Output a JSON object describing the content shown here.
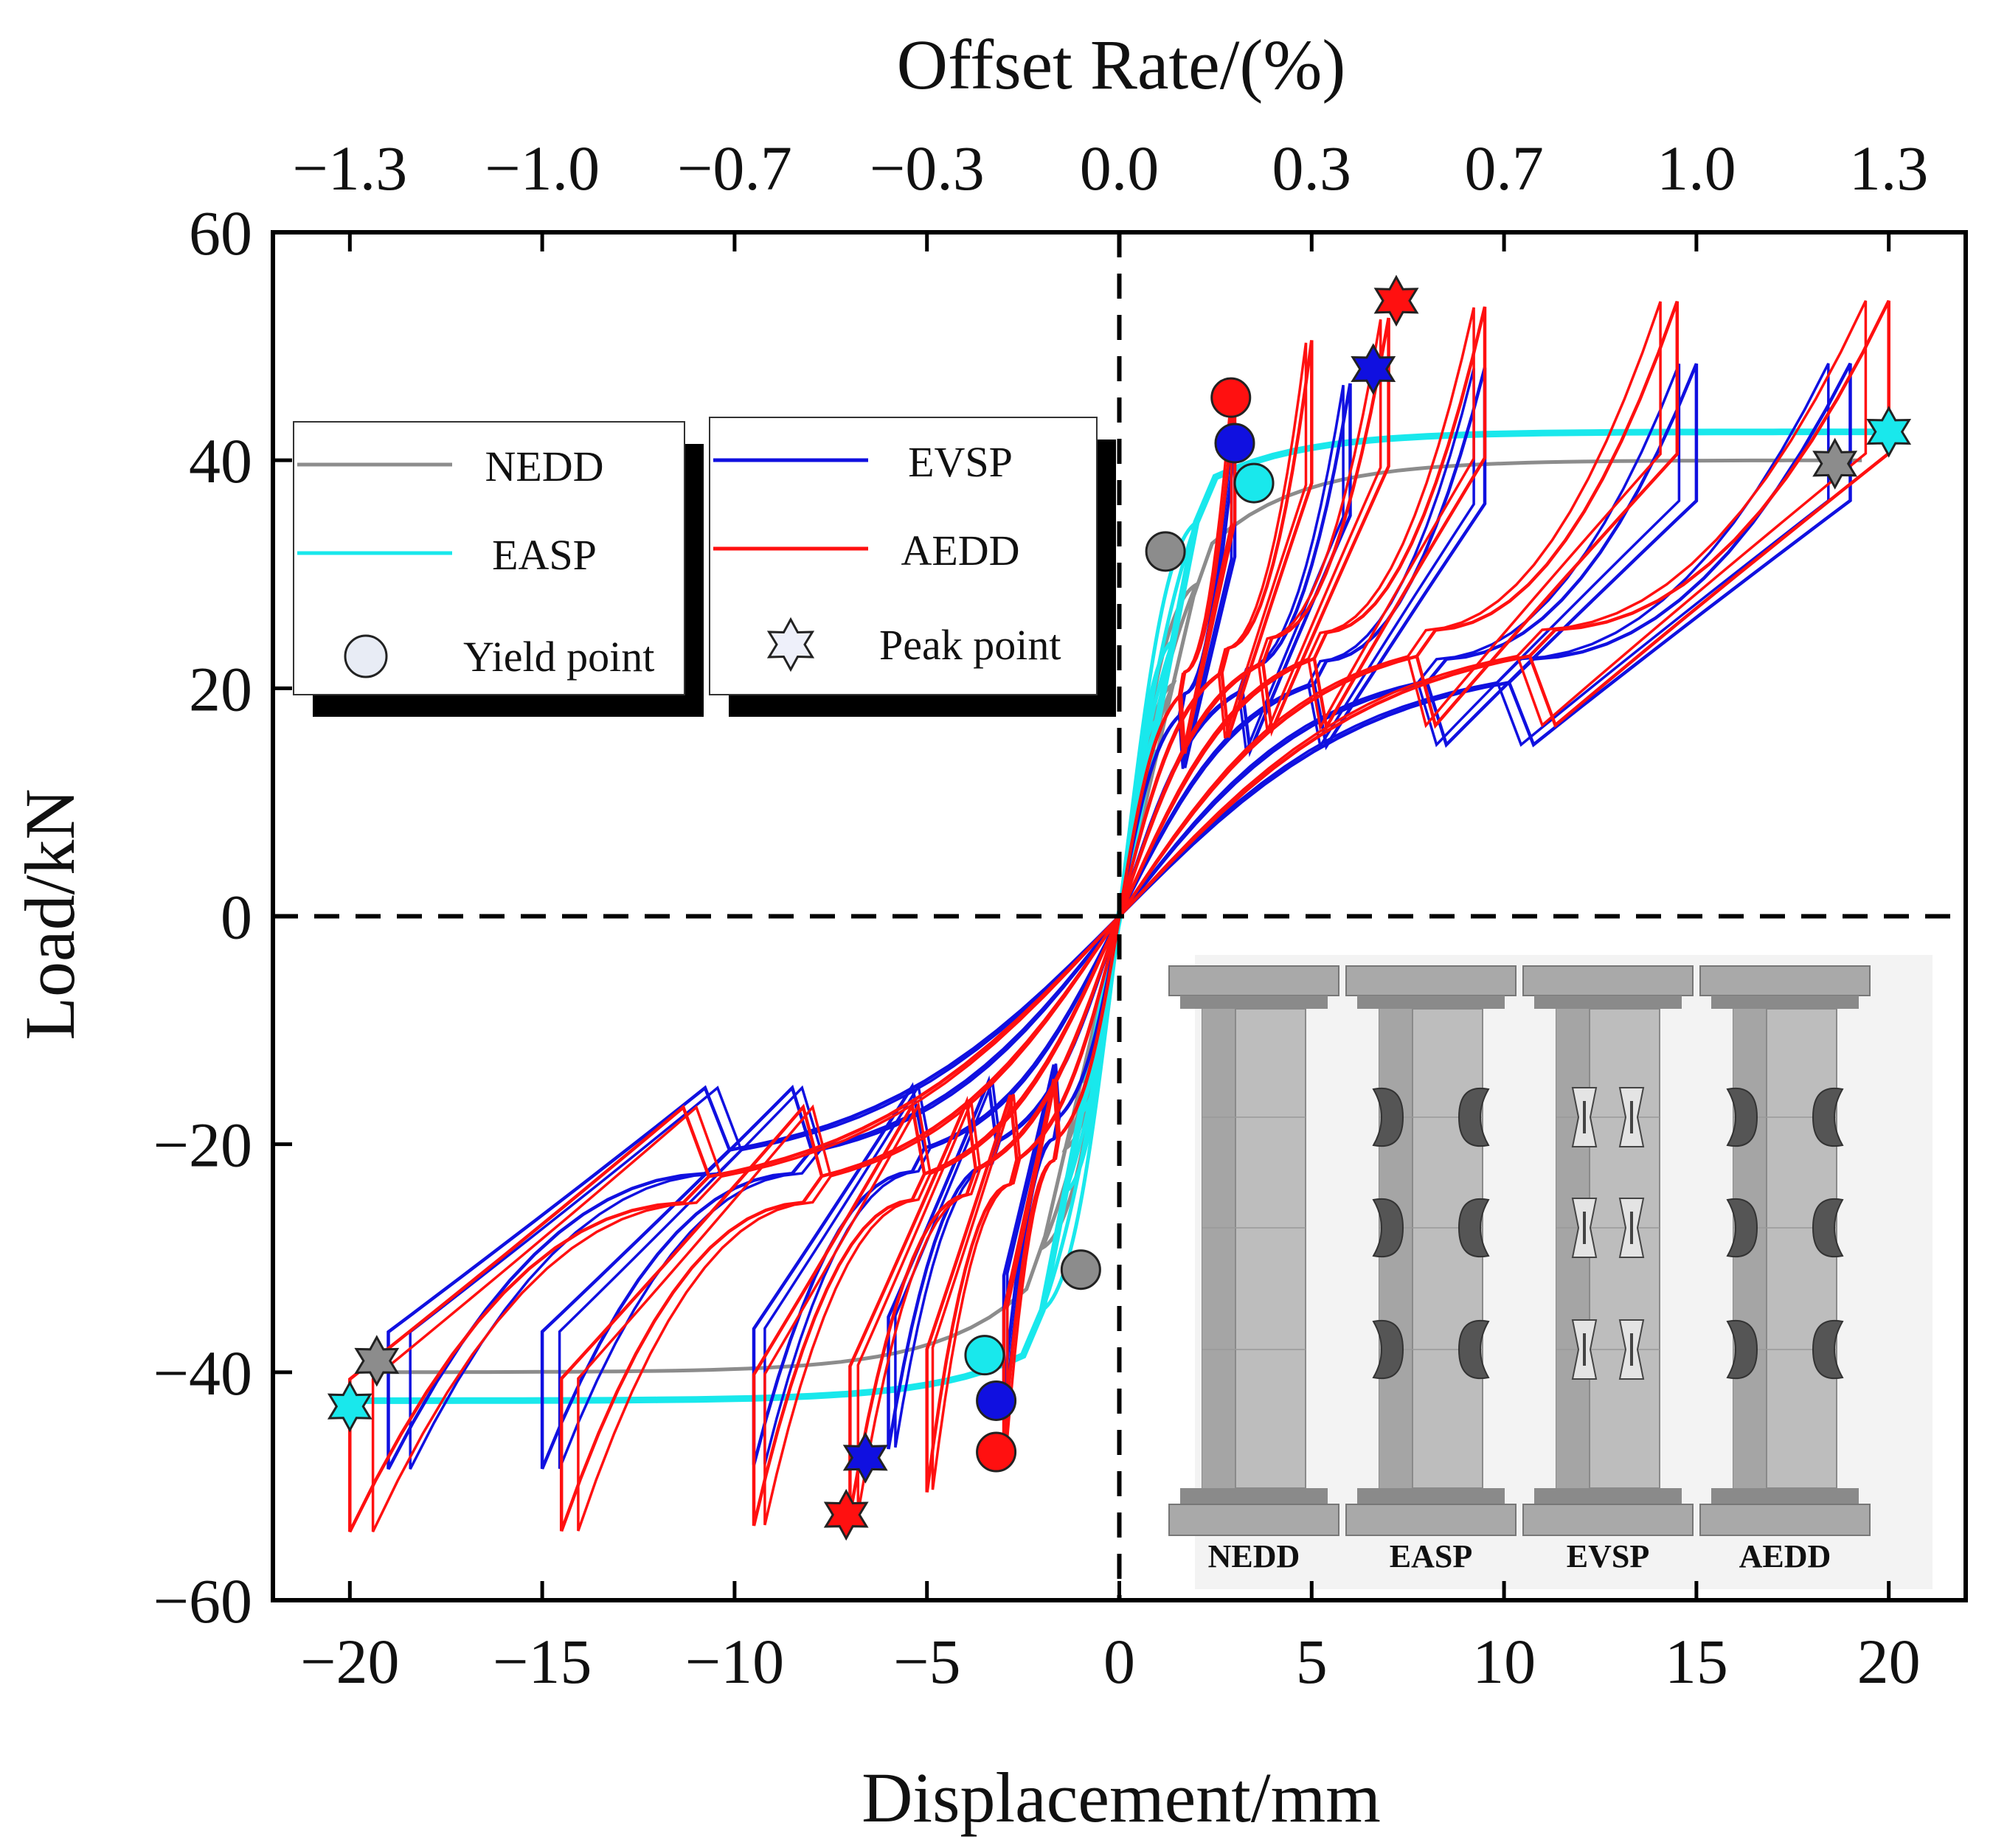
{
  "chart_data": {
    "type": "line",
    "title": "",
    "xlabel": "Displacement/mm",
    "ylabel": "Load/kN",
    "x2label": "Offset Rate/(%)",
    "xlim": [
      -22,
      22
    ],
    "ylim": [
      -60,
      60
    ],
    "x_ticks": [
      "−20",
      "−15",
      "−10",
      "−5",
      "0",
      "5",
      "10",
      "15",
      "20"
    ],
    "x_tick_values": [
      -20,
      -15,
      -10,
      -5,
      0,
      5,
      10,
      15,
      20
    ],
    "y_ticks": [
      "60",
      "40",
      "20",
      "0",
      "−20",
      "−40",
      "−60"
    ],
    "y_tick_values": [
      60,
      40,
      20,
      0,
      -20,
      -40,
      -60
    ],
    "x2_ticks": [
      "−1.3",
      "−1.0",
      "−0.7",
      "−0.3",
      "0.0",
      "0.3",
      "0.7",
      "1.0",
      "1.3"
    ],
    "x2_tick_values": [
      -20,
      -15,
      -10,
      -5,
      0,
      5,
      10,
      15,
      20
    ],
    "reference_lines": [
      {
        "axis": "x",
        "value": 0,
        "style": "dashed"
      },
      {
        "axis": "y",
        "value": 0,
        "style": "dashed"
      }
    ],
    "series": [
      {
        "name": "NEDD",
        "color": "#8c8c8c",
        "amplitudes": [
          1,
          2,
          3,
          19.3
        ],
        "peak_load": 40,
        "yield_load": 32
      },
      {
        "name": "EASP",
        "color": "#19e8ec",
        "amplitudes": [
          1,
          2,
          3,
          20
        ],
        "peak_load": 42.5,
        "yield_load": 38
      },
      {
        "name": "EVSP",
        "color": "#1010e0",
        "amplitudes": [
          3,
          6,
          9.5,
          15,
          19
        ],
        "peak_load": 48.5,
        "yield_load": 41.5
      },
      {
        "name": "AEDD",
        "color": "#ff1010",
        "amplitudes": [
          3,
          5,
          7,
          9.5,
          14.5,
          20
        ],
        "peak_load": 54,
        "yield_load": 45.5
      }
    ],
    "yield_points": [
      {
        "series": "NEDD",
        "color": "#8c8c8c",
        "points": [
          [
            1.2,
            32
          ],
          [
            -1.0,
            -31
          ]
        ]
      },
      {
        "series": "EVSP",
        "color": "#1010e0",
        "points": [
          [
            3.0,
            41.5
          ],
          [
            -3.2,
            -42.5
          ]
        ]
      },
      {
        "series": "AEDD",
        "color": "#ff1010",
        "points": [
          [
            2.9,
            45.5
          ],
          [
            -3.2,
            -47
          ]
        ]
      },
      {
        "series": "EASP",
        "color": "#19e8ec",
        "points": [
          [
            3.5,
            38
          ],
          [
            -3.5,
            -38.5
          ]
        ]
      }
    ],
    "peak_points": [
      {
        "series": "AEDD",
        "color": "#ff1010",
        "points": [
          [
            7.2,
            54
          ],
          [
            -7.1,
            -52.5
          ]
        ]
      },
      {
        "series": "EVSP",
        "color": "#1010e0",
        "points": [
          [
            6.6,
            48
          ],
          [
            -6.6,
            -47.5
          ]
        ]
      },
      {
        "series": "NEDD",
        "color": "#8c8c8c",
        "points": [
          [
            18.6,
            39.7
          ],
          [
            -19.3,
            -39
          ]
        ]
      },
      {
        "series": "EASP",
        "color": "#19e8ec",
        "points": [
          [
            20.0,
            42.5
          ],
          [
            -20.0,
            -43
          ]
        ]
      }
    ],
    "legend": {
      "position": "top-left",
      "groups": [
        {
          "items": [
            {
              "label": "NEDD",
              "kind": "line",
              "color": "#8c8c8c"
            },
            {
              "label": "EASP",
              "kind": "line",
              "color": "#19e8ec"
            },
            {
              "label": "Yield point",
              "kind": "circle",
              "color": "#e8ecf5"
            }
          ]
        },
        {
          "items": [
            {
              "label": "EVSP",
              "kind": "line",
              "color": "#1010e0"
            },
            {
              "label": "AEDD",
              "kind": "line",
              "color": "#ff1010"
            },
            {
              "label": "Peak point",
              "kind": "star",
              "color": "#eef0fa"
            }
          ]
        }
      ]
    },
    "inset": {
      "description_labels": [
        "NEDD",
        "EASP",
        "EVSP",
        "AEDD"
      ],
      "damper_types": [
        "none",
        "arc",
        "vsp",
        "arc"
      ],
      "position": "bottom-right"
    }
  }
}
